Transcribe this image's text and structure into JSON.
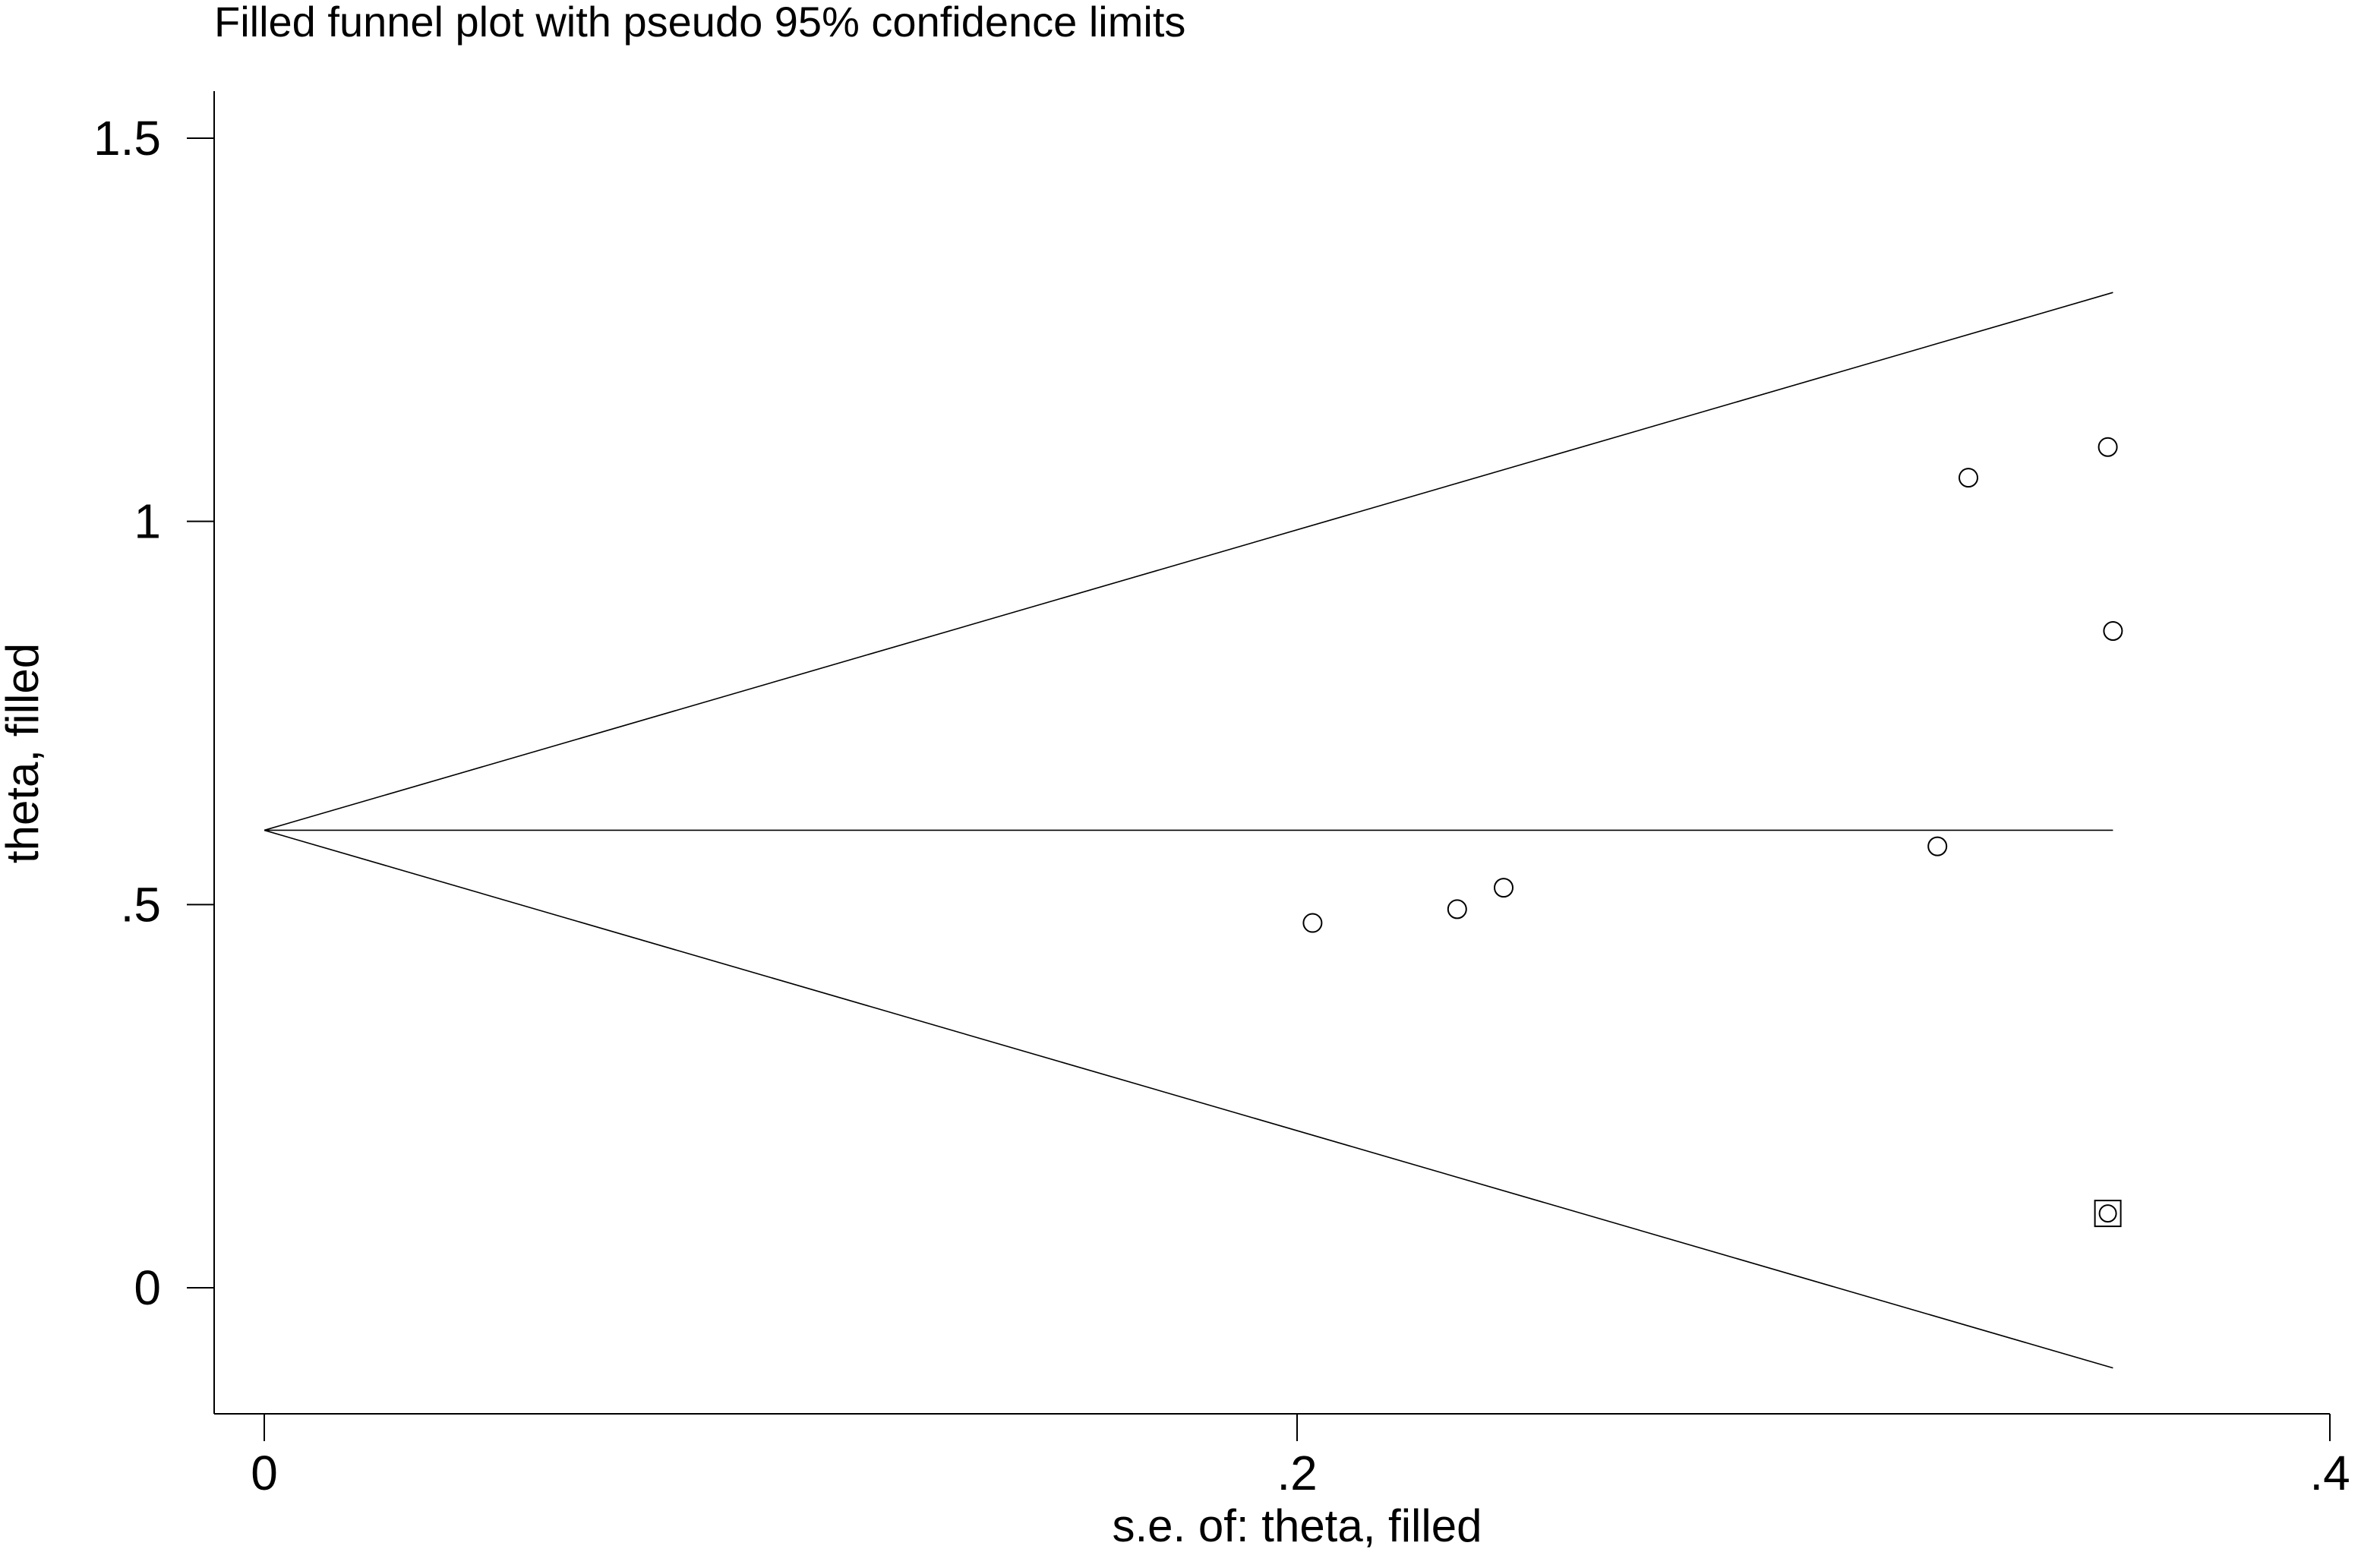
{
  "chart_data": {
    "type": "scatter",
    "title": "Filled funnel plot with pseudo 95% confidence limits",
    "xlabel": "s.e. of: theta, filled",
    "ylabel": "theta, filled",
    "xlim": [
      -0.02,
      0.4
    ],
    "ylim": [
      -0.16,
      1.56
    ],
    "x_ticks": [
      {
        "value": 0,
        "label": "0"
      },
      {
        "value": 0.2,
        "label": ".2"
      },
      {
        "value": 0.4,
        "label": ".4"
      }
    ],
    "y_ticks": [
      {
        "value": 0,
        "label": "0"
      },
      {
        "value": 0.5,
        "label": ".5"
      },
      {
        "value": 1,
        "label": "1"
      },
      {
        "value": 1.5,
        "label": "1.5"
      }
    ],
    "grid": false,
    "pooled_estimate": 0.597,
    "funnel_max_se": 0.358,
    "series": [
      {
        "marker": "circle",
        "points": [
          {
            "x": 0.203,
            "y": 0.476
          },
          {
            "x": 0.231,
            "y": 0.494
          },
          {
            "x": 0.24,
            "y": 0.522
          },
          {
            "x": 0.324,
            "y": 0.576
          },
          {
            "x": 0.33,
            "y": 1.057
          },
          {
            "x": 0.357,
            "y": 1.097
          },
          {
            "x": 0.358,
            "y": 0.857
          }
        ]
      },
      {
        "marker": "square-circle",
        "points": [
          {
            "x": 0.357,
            "y": 0.097
          }
        ]
      }
    ]
  }
}
